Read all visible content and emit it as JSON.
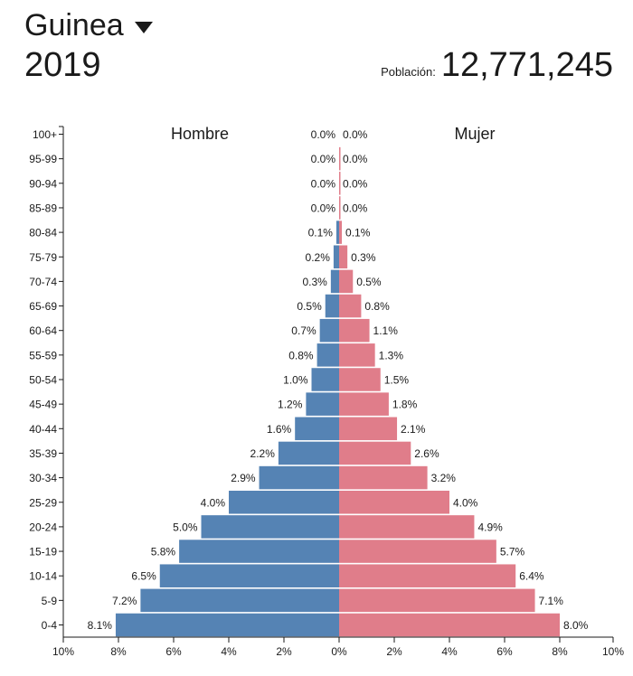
{
  "header": {
    "country": "Guinea",
    "year": "2019",
    "population_label": "Población:",
    "population_value": "12,771,245"
  },
  "colors": {
    "male": "#5583b4",
    "female": "#e07d8a"
  },
  "chart_data": {
    "type": "bar",
    "orientation": "horizontal-population-pyramid",
    "categories": [
      "0-4",
      "5-9",
      "10-14",
      "15-19",
      "20-24",
      "25-29",
      "30-34",
      "35-39",
      "40-44",
      "45-49",
      "50-54",
      "55-59",
      "60-64",
      "65-69",
      "70-74",
      "75-79",
      "80-84",
      "85-89",
      "90-94",
      "95-99",
      "100+"
    ],
    "series": [
      {
        "name": "Hombre",
        "values": [
          8.1,
          7.2,
          6.5,
          5.8,
          5.0,
          4.0,
          2.9,
          2.2,
          1.6,
          1.2,
          1.0,
          0.8,
          0.7,
          0.5,
          0.3,
          0.2,
          0.1,
          0.0,
          0.0,
          0.0,
          0.0
        ]
      },
      {
        "name": "Mujer",
        "values": [
          8.0,
          7.1,
          6.4,
          5.7,
          4.9,
          4.0,
          3.2,
          2.6,
          2.1,
          1.8,
          1.5,
          1.3,
          1.1,
          0.8,
          0.5,
          0.3,
          0.1,
          0.0,
          0.0,
          0.0,
          0.0
        ]
      }
    ],
    "labels": {
      "Hombre": [
        "8.1%",
        "7.2%",
        "6.5%",
        "5.8%",
        "5.0%",
        "4.0%",
        "2.9%",
        "2.2%",
        "1.6%",
        "1.2%",
        "1.0%",
        "0.8%",
        "0.7%",
        "0.5%",
        "0.3%",
        "0.2%",
        "0.1%",
        "0.0%",
        "0.0%",
        "0.0%",
        "0.0%"
      ],
      "Mujer": [
        "8.0%",
        "7.1%",
        "6.4%",
        "5.7%",
        "4.9%",
        "4.0%",
        "3.2%",
        "2.6%",
        "2.1%",
        "1.8%",
        "1.5%",
        "1.3%",
        "1.1%",
        "0.8%",
        "0.5%",
        "0.3%",
        "0.1%",
        "0.0%",
        "0.0%",
        "0.0%",
        "0.0%"
      ]
    },
    "xlim": [
      -10,
      10
    ],
    "xticks": [
      -10,
      -8,
      -6,
      -4,
      -2,
      0,
      2,
      4,
      6,
      8,
      10
    ],
    "xtick_labels": [
      "10%",
      "8%",
      "6%",
      "4%",
      "2%",
      "0%",
      "2%",
      "4%",
      "6%",
      "8%",
      "10%"
    ],
    "grid": false
  }
}
